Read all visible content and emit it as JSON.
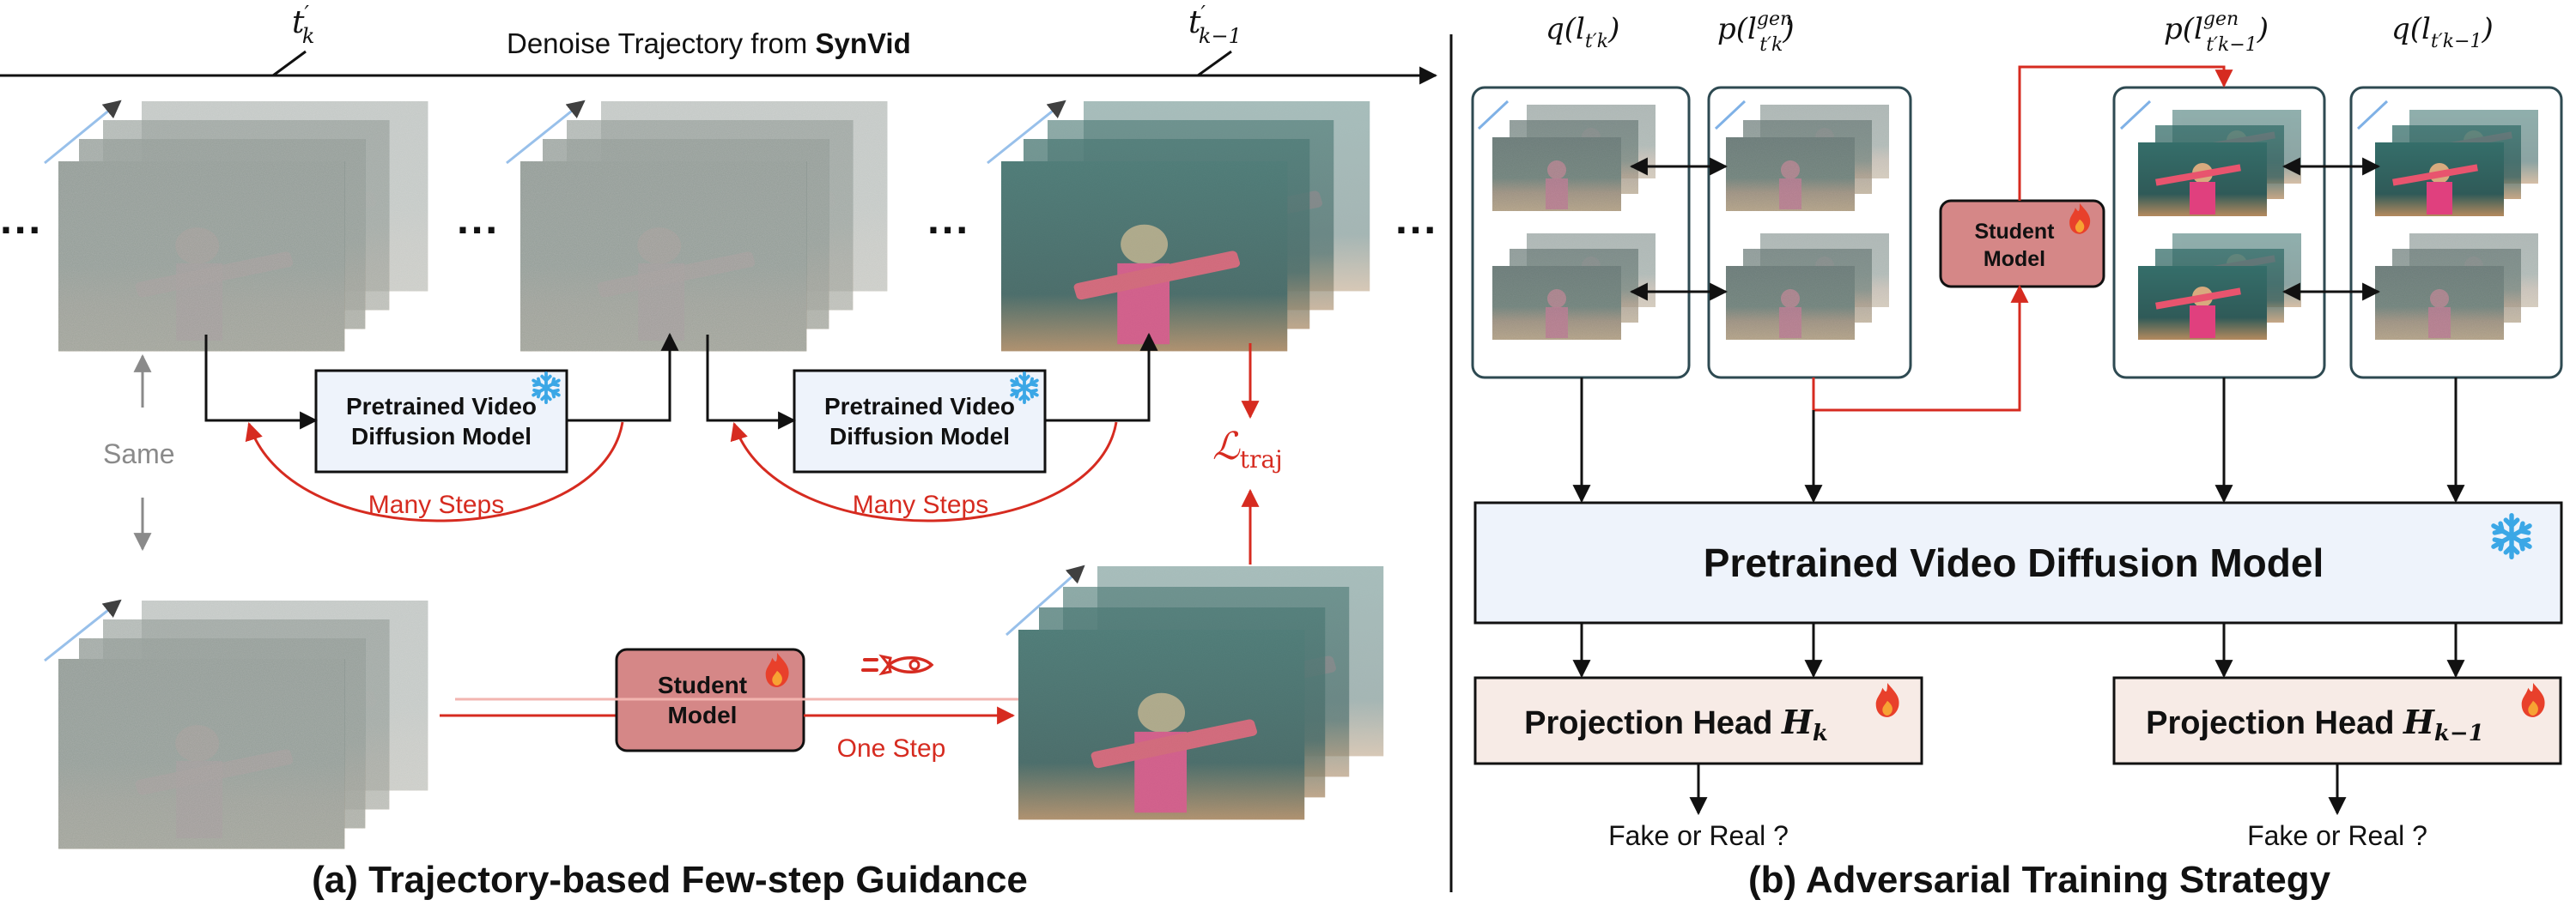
{
  "left": {
    "trajectory_label_prefix": "Denoise Trajectory from ",
    "trajectory_label_bold": "SynVid",
    "time_start": "t",
    "time_start_sup": "′",
    "time_start_sub": "k",
    "time_end": "t",
    "time_end_sup": "′",
    "time_end_sub": "k−1",
    "ellipsis": "···",
    "same_label": "Same",
    "pretrained_line1": "Pretrained Video",
    "pretrained_line2": "Diffusion Model",
    "many_steps": "Many Steps",
    "student_line1": "Student",
    "student_line2": "Model",
    "one_step": "One Step",
    "loss_symbol": "ℒ",
    "loss_sub": "traj",
    "caption": "(a) Trajectory-based Few-step Guidance"
  },
  "right": {
    "labels": {
      "q_k": "q(l",
      "q_k_sub": "t′k",
      "p_k": "p(l",
      "p_k_sup": "gen",
      "p_k_sub": "t′k",
      "p_k1": "p(l",
      "p_k1_sup": "gen",
      "p_k1_sub": "t′k−1",
      "q_k1": "q(l",
      "q_k1_sub": "t′k−1",
      "close": ")"
    },
    "student_line1": "Student",
    "student_line2": "Model",
    "pretrained": "Pretrained Video Diffusion Model",
    "head_k": "Projection Head ",
    "head_k_var": "H",
    "head_k_sub": "k",
    "head_k1": "Projection Head ",
    "head_k1_var": "H",
    "head_k1_sub": "k−1",
    "fake_real_1": "Fake or Real ?",
    "fake_real_2": "Fake or Real ?",
    "caption": "(b) Adversarial Training Strategy"
  },
  "colors": {
    "red_accent": "#d62b20",
    "pretrained_fill": "#eef3fb",
    "student_fill": "#d58787",
    "head_fill": "#f7ebe6",
    "panel_border": "#2e4a52",
    "snowflake": "#3ba7e6",
    "flame": "#e8402b"
  },
  "icons": [
    "snowflake-icon",
    "flame-icon",
    "rocket-icon"
  ]
}
